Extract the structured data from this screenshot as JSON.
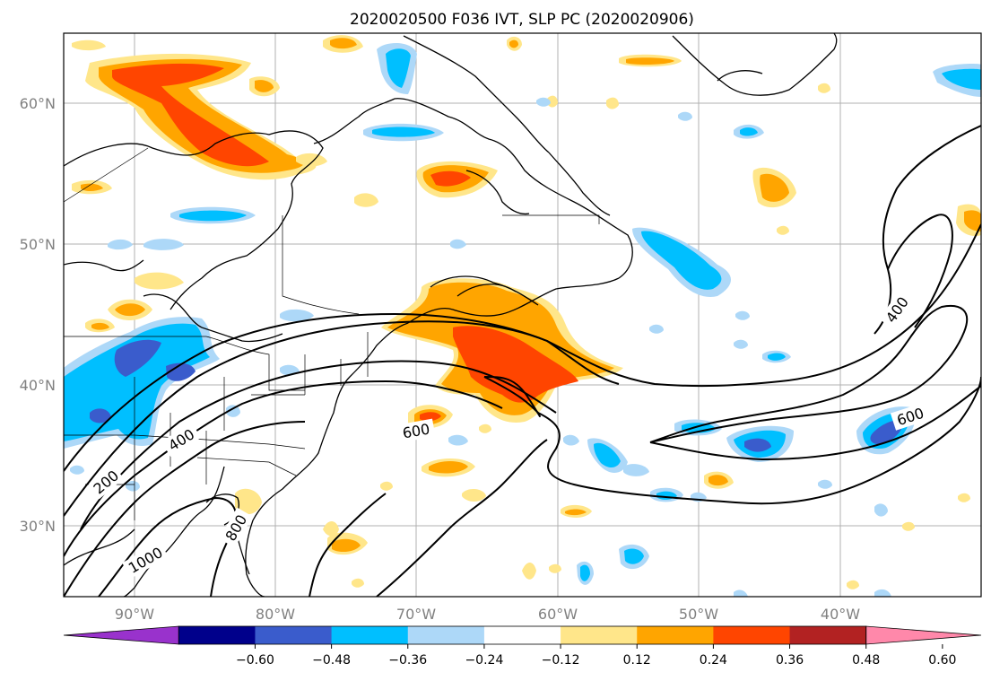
{
  "title": "2020020500 F036 IVT, SLP PC (2020020906)",
  "map": {
    "lon_range": [
      -95,
      -30
    ],
    "lat_range": [
      25,
      65
    ],
    "lon_ticks": [
      "90°W",
      "80°W",
      "70°W",
      "60°W",
      "50°W",
      "40°W"
    ],
    "lat_ticks": [
      "30°N",
      "40°N",
      "50°N",
      "60°N"
    ],
    "grid": true,
    "contour_labels": [
      "200",
      "400",
      "600",
      "800",
      "1000",
      "400",
      "600"
    ]
  },
  "colorbar": {
    "ticks": [
      "−0.60",
      "−0.48",
      "−0.36",
      "−0.24",
      "−0.12",
      "0.12",
      "0.24",
      "0.36",
      "0.48",
      "0.60"
    ],
    "colors": [
      "#9932cc",
      "#00008b",
      "#3a5ccc",
      "#00bfff",
      "#add8f8",
      "#ffffff",
      "#ffe68a",
      "#ffa500",
      "#ff4500",
      "#b22222",
      "#ff88aa"
    ],
    "extend": "both"
  }
}
